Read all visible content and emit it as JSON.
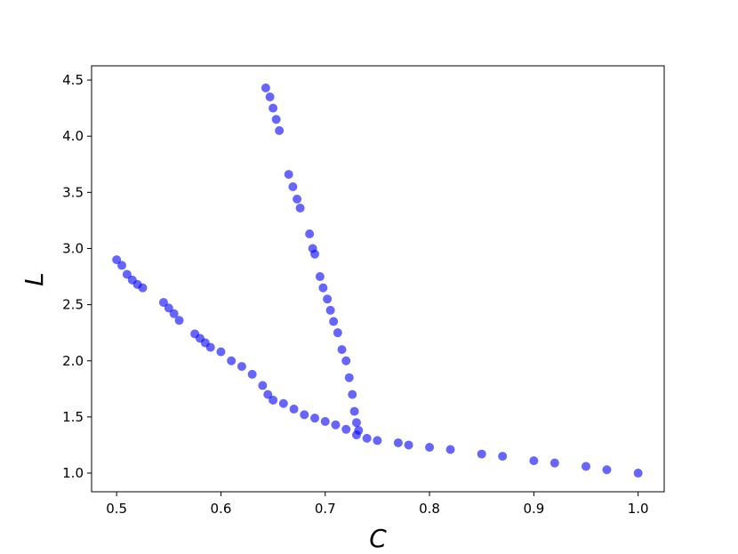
{
  "chart_data": {
    "type": "scatter",
    "x_label": "C",
    "y_label": "L",
    "xlim": [
      0.476,
      1.025
    ],
    "ylim": [
      0.834,
      4.627
    ],
    "xticks": [
      0.5,
      0.6,
      0.7,
      0.8,
      0.9,
      {
        "value": 1.0,
        "label": "1.0"
      }
    ],
    "yticks": [
      {
        "value": 1.0,
        "label": "1.0"
      },
      1.5,
      {
        "value": 2.0,
        "label": "2.0"
      },
      2.5,
      {
        "value": 3.0,
        "label": "3.0"
      },
      3.5,
      {
        "value": 4.0,
        "label": "4.0"
      },
      4.5
    ],
    "series": [
      {
        "color": "#0000ff",
        "x": [
          0.5,
          0.505,
          0.51,
          0.515,
          0.52,
          0.525,
          0.545,
          0.55,
          0.555,
          0.56,
          0.575,
          0.58,
          0.585,
          0.59,
          0.6,
          0.61,
          0.62,
          0.63,
          0.64,
          0.645,
          0.65,
          0.66,
          0.67,
          0.68,
          0.69,
          0.7,
          0.71,
          0.72,
          0.73,
          0.74,
          0.75,
          0.77,
          0.78,
          0.8,
          0.82,
          0.85,
          0.87,
          0.9,
          0.92,
          0.95,
          0.97,
          1.0,
          0.643,
          0.647,
          0.65,
          0.653,
          0.656,
          0.665,
          0.669,
          0.673,
          0.676,
          0.685,
          0.688,
          0.69,
          0.695,
          0.698,
          0.702,
          0.705,
          0.708,
          0.712,
          0.716,
          0.72,
          0.723,
          0.726,
          0.728,
          0.73,
          0.732
        ],
        "y": [
          2.9,
          2.85,
          2.77,
          2.72,
          2.68,
          2.65,
          2.52,
          2.47,
          2.42,
          2.36,
          2.24,
          2.2,
          2.16,
          2.12,
          2.08,
          2.0,
          1.95,
          1.88,
          1.78,
          1.7,
          1.65,
          1.62,
          1.57,
          1.52,
          1.49,
          1.46,
          1.43,
          1.39,
          1.34,
          1.31,
          1.29,
          1.27,
          1.25,
          1.23,
          1.21,
          1.17,
          1.15,
          1.11,
          1.09,
          1.06,
          1.03,
          1.0,
          4.43,
          4.35,
          4.25,
          4.15,
          4.05,
          3.66,
          3.55,
          3.44,
          3.36,
          3.13,
          3.0,
          2.95,
          2.75,
          2.65,
          2.55,
          2.45,
          2.35,
          2.25,
          2.1,
          2.0,
          1.85,
          1.7,
          1.55,
          1.45,
          1.38
        ]
      }
    ]
  }
}
